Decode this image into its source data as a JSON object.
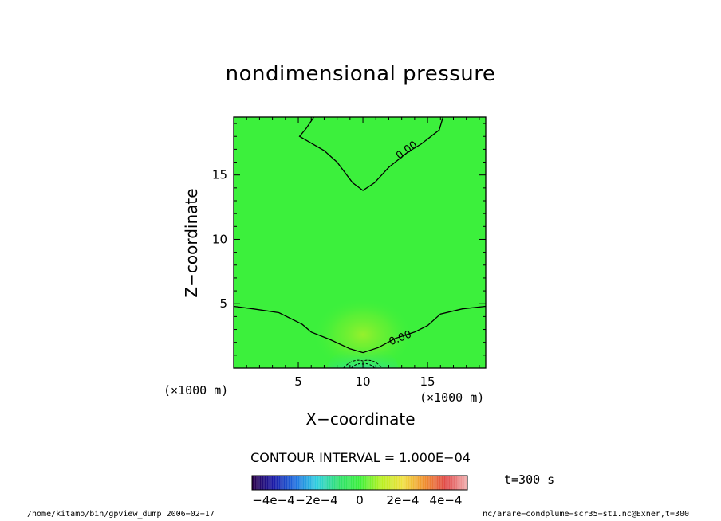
{
  "chart_data": {
    "type": "heatmap",
    "title": "nondimensional pressure",
    "xlabel": "X−coordinate",
    "ylabel": "Z−coordinate",
    "x_unit_label": "(×1000 m)",
    "xlim": [
      0,
      19.5
    ],
    "ylim": [
      0,
      19.5
    ],
    "x_ticks": [
      5,
      10,
      15
    ],
    "y_ticks": [
      5,
      10,
      15
    ],
    "contour_interval_text": "CONTOUR INTERVAL = 1.000E−04",
    "contour_labels": [
      "0.00",
      "0.00"
    ],
    "colorbar_ticks": [
      {
        "value": -0.0004,
        "label": "−4e−4"
      },
      {
        "value": -0.0002,
        "label": "−2e−4"
      },
      {
        "value": 0,
        "label": "0"
      },
      {
        "value": 0.0002,
        "label": "2e−4"
      },
      {
        "value": 0.0004,
        "label": "4e−4"
      }
    ],
    "colorbar_range": [
      -0.0005,
      0.0005
    ],
    "colormap": [
      "#2b0047",
      "#1a1aa8",
      "#1f6fe0",
      "#2fd0e0",
      "#30e070",
      "#3cf03c",
      "#b8f020",
      "#f0e040",
      "#f09030",
      "#e04848",
      "#f0b0b0"
    ],
    "background_color": "#3cf03c",
    "upper_zero_contour": [
      [
        6.2,
        19.5
      ],
      [
        5.6,
        18.6
      ],
      [
        5.1,
        18.0
      ],
      [
        7.0,
        16.9
      ],
      [
        8.0,
        16.0
      ],
      [
        9.2,
        14.4
      ],
      [
        10.0,
        13.8
      ],
      [
        10.9,
        14.4
      ],
      [
        12.0,
        15.6
      ],
      [
        13.5,
        16.8
      ],
      [
        14.5,
        17.4
      ],
      [
        15.9,
        18.5
      ],
      [
        16.2,
        19.5
      ]
    ],
    "lower_zero_contour": [
      [
        0,
        4.8
      ],
      [
        1.5,
        4.6
      ],
      [
        3.5,
        4.3
      ],
      [
        5.3,
        3.4
      ],
      [
        6.0,
        2.8
      ],
      [
        7.5,
        2.2
      ],
      [
        9.0,
        1.5
      ],
      [
        10.0,
        1.2
      ],
      [
        11.2,
        1.6
      ],
      [
        12.5,
        2.3
      ],
      [
        14.0,
        2.8
      ],
      [
        15.0,
        3.3
      ],
      [
        16.0,
        4.2
      ],
      [
        17.7,
        4.6
      ],
      [
        19.5,
        4.8
      ]
    ],
    "time_label": "t=300 s",
    "footer_left": "/home/kitamo/bin/gpview_dump  2006−02−17",
    "footer_right": "nc/arare−condplume−scr35−st1.nc@Exner,t=300"
  }
}
